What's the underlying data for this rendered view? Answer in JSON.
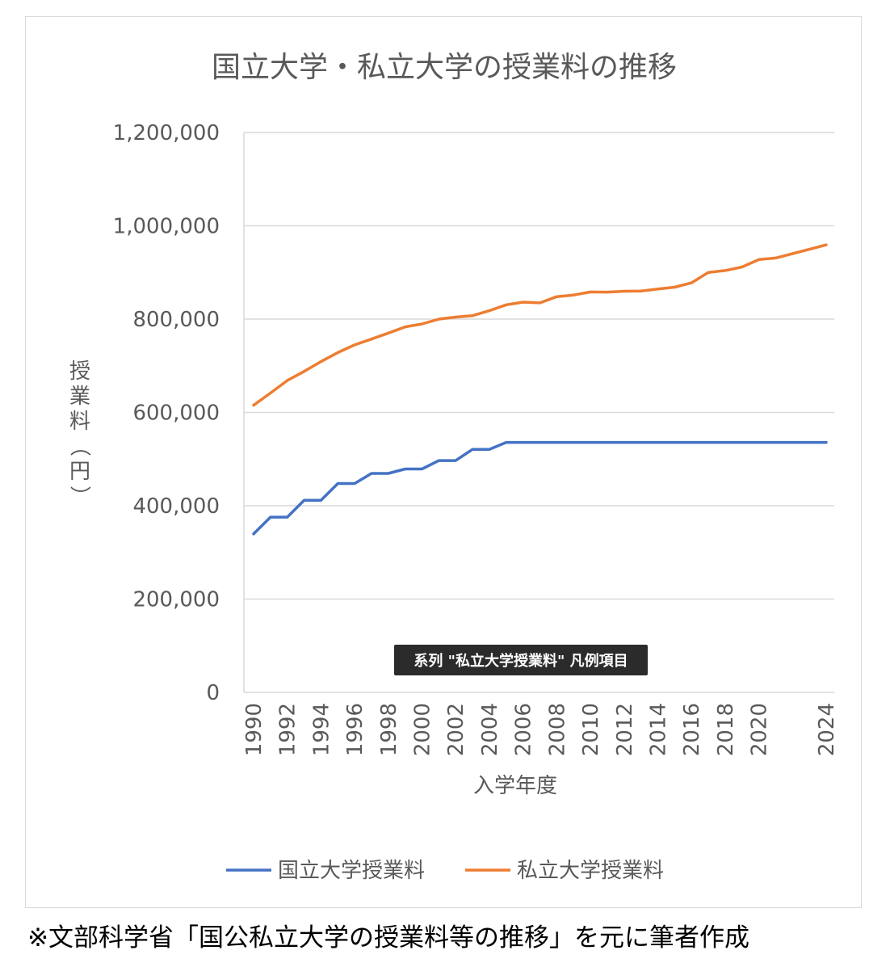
{
  "chart_data": {
    "type": "line",
    "title": "国立大学・私立大学の授業料の推移",
    "xlabel": "入学年度",
    "ylabel": "授業料（円）",
    "ylim": [
      0,
      1200000
    ],
    "y_ticks": [
      "0",
      "200,000",
      "400,000",
      "600,000",
      "800,000",
      "1,000,000",
      "1,200,000"
    ],
    "y_tick_values": [
      0,
      200000,
      400000,
      600000,
      800000,
      1000000,
      1200000
    ],
    "x_tick_labels": [
      "1990",
      "1992",
      "1994",
      "1996",
      "1998",
      "2000",
      "2002",
      "2004",
      "2006",
      "2008",
      "2010",
      "2012",
      "2014",
      "2016",
      "2018",
      "2020",
      "2024"
    ],
    "x_tick_values": [
      1990,
      1992,
      1994,
      1996,
      1998,
      2000,
      2002,
      2004,
      2006,
      2008,
      2010,
      2012,
      2014,
      2016,
      2018,
      2020,
      2024
    ],
    "xlim": [
      1990,
      2024
    ],
    "grid": true,
    "legend_position": "bottom",
    "x": [
      1990,
      1991,
      1992,
      1993,
      1994,
      1995,
      1996,
      1997,
      1998,
      1999,
      2000,
      2001,
      2002,
      2003,
      2004,
      2005,
      2006,
      2007,
      2008,
      2009,
      2010,
      2011,
      2012,
      2013,
      2014,
      2015,
      2016,
      2017,
      2018,
      2019,
      2020,
      2021,
      2024
    ],
    "series": [
      {
        "name": "国立大学授業料",
        "color": "#4472c4",
        "values": [
          339600,
          375600,
          375600,
          411600,
          411600,
          447600,
          447600,
          469200,
          469200,
          478800,
          478800,
          496800,
          496800,
          520800,
          520800,
          535800,
          535800,
          535800,
          535800,
          535800,
          535800,
          535800,
          535800,
          535800,
          535800,
          535800,
          535800,
          535800,
          535800,
          535800,
          535800,
          535800,
          535800
        ]
      },
      {
        "name": "私立大学授業料",
        "color": "#ed7d31",
        "values": [
          615486,
          641608,
          668460,
          688046,
          708847,
          728365,
          744733,
          757158,
          770024,
          783298,
          789659,
          799973,
          804367,
          807413,
          817952,
          830583,
          836297,
          834751,
          848178,
          851621,
          858265,
          857763,
          859751,
          860266,
          864384,
          868447,
          877735,
          900093,
          904146,
          911716,
          927705,
          930943,
          959205
        ]
      }
    ]
  },
  "tooltip": "系列 \"私立大学授業料\" 凡例項目",
  "footnote": "※文部科学省「国公私立大学の授業料等の推移」を元に筆者作成"
}
